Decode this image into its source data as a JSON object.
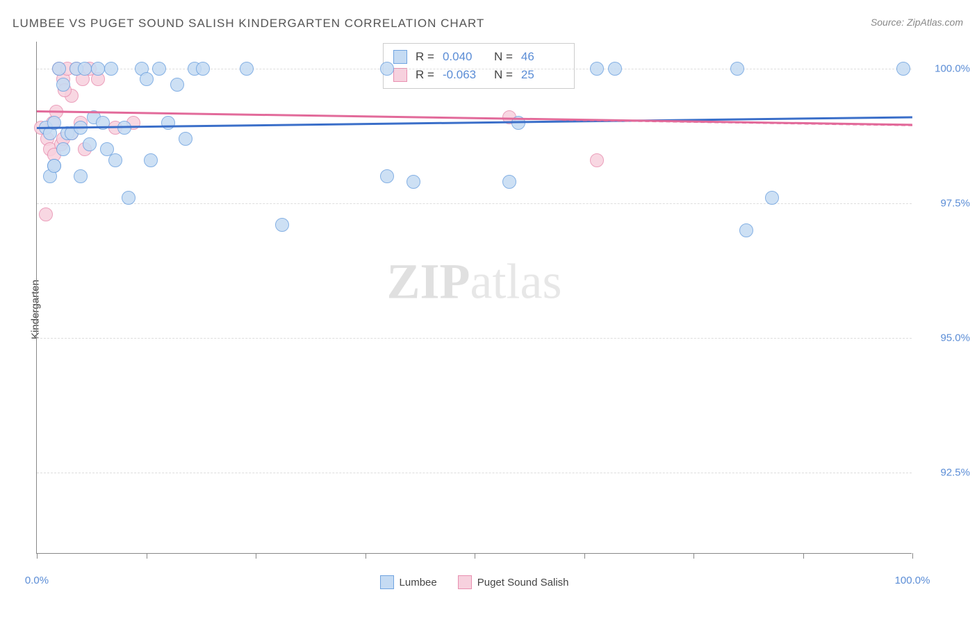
{
  "title": "LUMBEE VS PUGET SOUND SALISH KINDERGARTEN CORRELATION CHART",
  "source": "Source: ZipAtlas.com",
  "y_axis_label": "Kindergarten",
  "watermark": {
    "bold": "ZIP",
    "light": "atlas"
  },
  "chart": {
    "type": "scatter",
    "background_color": "#ffffff",
    "grid_color": "#dddddd",
    "axis_color": "#888888",
    "label_color": "#5b8dd6",
    "xlim": [
      0,
      100
    ],
    "ylim": [
      91,
      100.5
    ],
    "y_ticks": [
      92.5,
      95.0,
      97.5,
      100.0
    ],
    "y_tick_labels": [
      "92.5%",
      "95.0%",
      "97.5%",
      "100.0%"
    ],
    "x_ticks": [
      0,
      12.5,
      25,
      37.5,
      50,
      62.5,
      75,
      87.5,
      100
    ],
    "x_tick_labels": {
      "0": "0.0%",
      "100": "100.0%"
    },
    "marker_radius": 10,
    "marker_stroke_width": 1.5,
    "series": [
      {
        "name": "Lumbee",
        "fill": "#c5dbf3",
        "stroke": "#6fa3e0",
        "r_value": "0.040",
        "n_value": "46",
        "trend": {
          "x1": 0,
          "y1": 98.9,
          "x2": 100,
          "y2": 99.1,
          "color": "#3b6fc9",
          "dash": false
        },
        "points": [
          [
            1,
            98.9
          ],
          [
            1.5,
            98.8
          ],
          [
            2,
            99.0
          ],
          [
            2,
            98.2
          ],
          [
            2.5,
            100.0
          ],
          [
            3,
            98.5
          ],
          [
            3,
            99.7
          ],
          [
            3.5,
            98.8
          ],
          [
            4,
            98.8
          ],
          [
            4.5,
            100.0
          ],
          [
            5,
            98.9
          ],
          [
            5,
            98.0
          ],
          [
            5.5,
            100.0
          ],
          [
            6,
            98.6
          ],
          [
            6.5,
            99.1
          ],
          [
            7,
            100.0
          ],
          [
            7.5,
            99.0
          ],
          [
            8,
            98.5
          ],
          [
            8.5,
            100.0
          ],
          [
            9,
            98.3
          ],
          [
            10,
            98.9
          ],
          [
            10.5,
            97.6
          ],
          [
            12,
            100.0
          ],
          [
            12.5,
            99.8
          ],
          [
            13,
            98.3
          ],
          [
            14,
            100.0
          ],
          [
            15,
            99.0
          ],
          [
            16,
            99.7
          ],
          [
            17,
            98.7
          ],
          [
            18,
            100.0
          ],
          [
            19,
            100.0
          ],
          [
            24,
            100.0
          ],
          [
            28,
            97.1
          ],
          [
            40,
            100.0
          ],
          [
            40,
            98.0
          ],
          [
            43,
            97.9
          ],
          [
            54,
            97.9
          ],
          [
            55,
            99.0
          ],
          [
            64,
            100.0
          ],
          [
            66,
            100.0
          ],
          [
            80,
            100.0
          ],
          [
            81,
            97.0
          ],
          [
            84,
            97.6
          ],
          [
            99,
            100.0
          ],
          [
            1.5,
            98.0
          ],
          [
            2,
            98.2
          ]
        ]
      },
      {
        "name": "Puget Sound Salish",
        "fill": "#f7d1de",
        "stroke": "#e88fb0",
        "r_value": "-0.063",
        "n_value": "25",
        "trend": {
          "x1": 0,
          "y1": 99.2,
          "x2": 100,
          "y2": 98.95,
          "color": "#e26a9a",
          "dash": true
        },
        "points": [
          [
            0.5,
            98.9
          ],
          [
            1,
            97.3
          ],
          [
            1.2,
            98.7
          ],
          [
            1.5,
            98.5
          ],
          [
            1.8,
            99.0
          ],
          [
            2,
            98.4
          ],
          [
            2.2,
            99.2
          ],
          [
            2.5,
            100.0
          ],
          [
            2.8,
            98.6
          ],
          [
            3,
            99.8
          ],
          [
            3,
            98.7
          ],
          [
            3.5,
            100.0
          ],
          [
            4,
            99.5
          ],
          [
            4,
            98.8
          ],
          [
            4.5,
            100.0
          ],
          [
            5,
            99.0
          ],
          [
            5.2,
            99.8
          ],
          [
            5.5,
            98.5
          ],
          [
            6,
            100.0
          ],
          [
            7,
            99.8
          ],
          [
            9,
            98.9
          ],
          [
            11,
            99.0
          ],
          [
            54,
            99.1
          ],
          [
            64,
            98.3
          ],
          [
            3.2,
            99.6
          ]
        ]
      }
    ]
  },
  "stats_box": {
    "label_r": "R =",
    "label_n": "N ="
  },
  "legend_labels": [
    "Lumbee",
    "Puget Sound Salish"
  ]
}
